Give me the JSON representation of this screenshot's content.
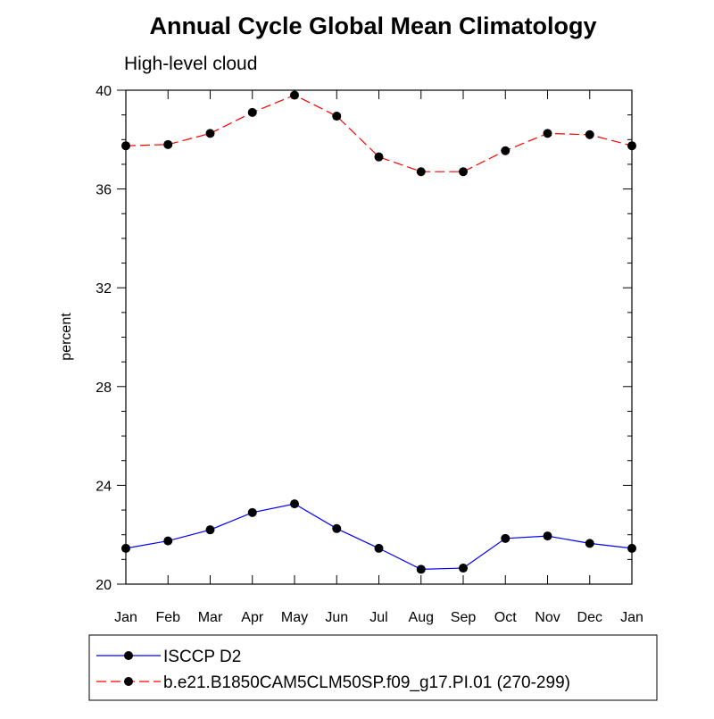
{
  "chart_data": {
    "type": "line",
    "title": "Annual Cycle Global Mean Climatology",
    "subtitle": "High-level cloud",
    "xlabel": "",
    "ylabel": "percent",
    "categories": [
      "Jan",
      "Feb",
      "Mar",
      "Apr",
      "May",
      "Jun",
      "Jul",
      "Aug",
      "Sep",
      "Oct",
      "Nov",
      "Dec",
      "Jan"
    ],
    "ylim": [
      20,
      40
    ],
    "yticks": [
      "20",
      "24",
      "28",
      "32",
      "36",
      "40"
    ],
    "series": [
      {
        "name": "ISCCP D2",
        "color": "#0000ff",
        "style": "solid",
        "marker": "circle",
        "values": [
          21.45,
          21.75,
          22.2,
          22.9,
          23.25,
          22.25,
          21.45,
          20.6,
          20.65,
          21.85,
          21.95,
          21.65,
          21.45
        ]
      },
      {
        "name": "b.e21.B1850CAM5CLM50SP.f09_g17.PI.01 (270-299)",
        "color": "#ff0000",
        "style": "dashed",
        "marker": "circle",
        "values": [
          37.75,
          37.8,
          38.25,
          39.1,
          39.8,
          38.95,
          37.3,
          36.7,
          36.7,
          37.55,
          38.25,
          38.2,
          37.75
        ]
      }
    ],
    "legend_position": "bottom"
  }
}
